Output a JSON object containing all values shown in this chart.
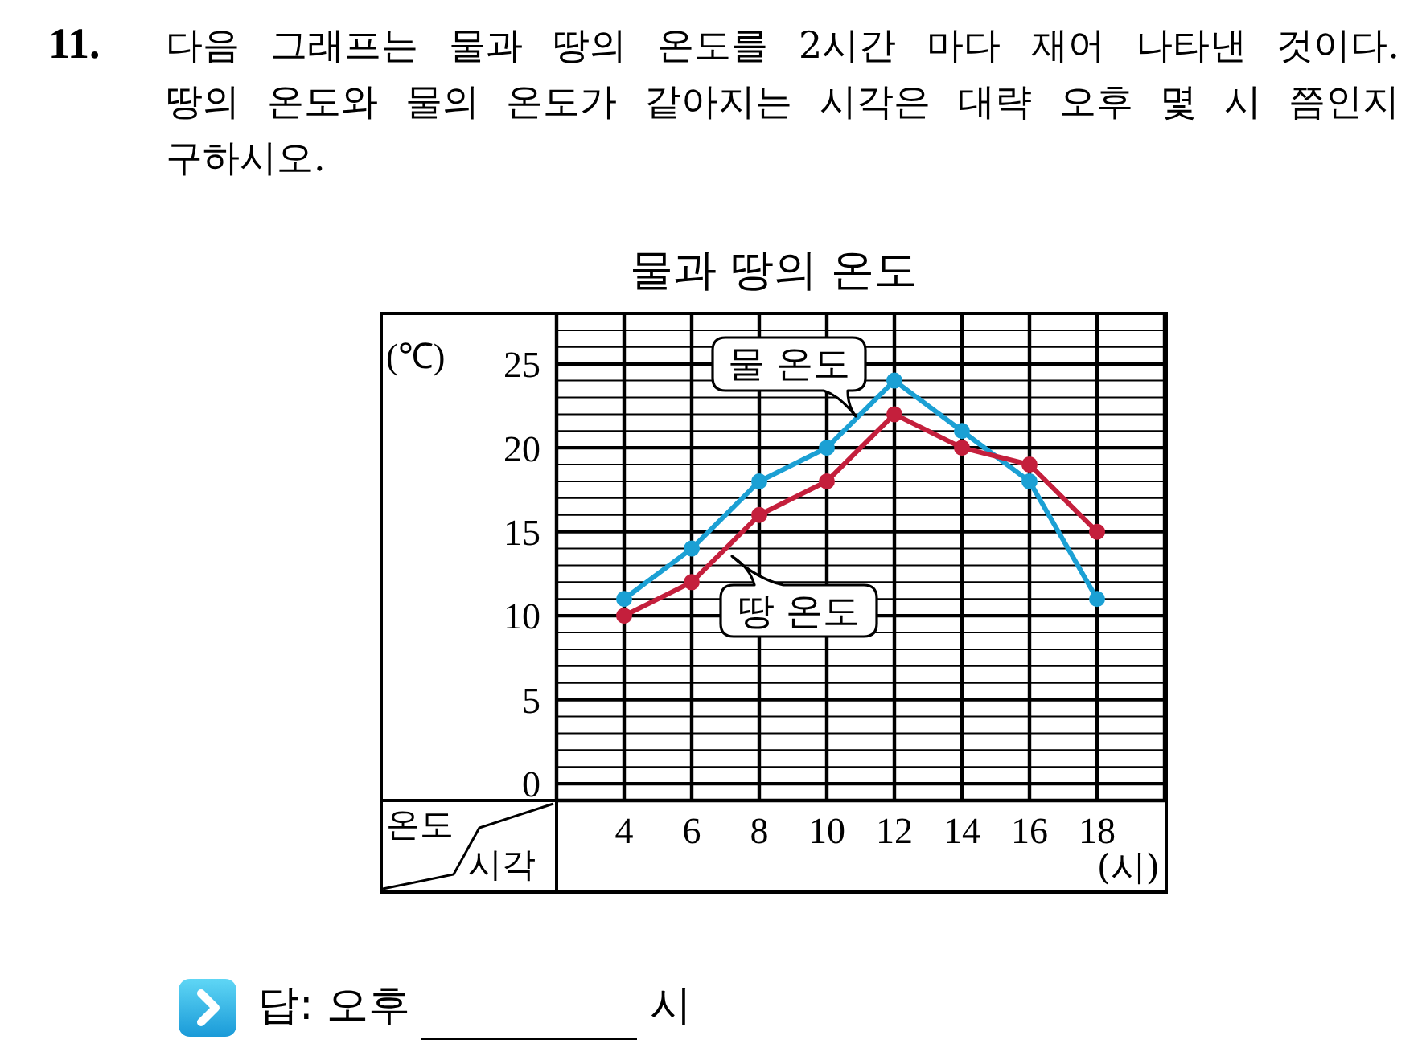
{
  "chart_data": {
    "type": "line",
    "title": "물과 땅의 온도",
    "xlabel": "(시)",
    "ylabel": "(℃)",
    "annotations": [
      "11.",
      "다음 그래프는 물과 땅의 온도를 2시간 마다 재어 나타낸 것이다.\n땅의 온도와 물의 온도가 같아지는 시각은 대략 오후 몇 시 쯤인지\n구하시오.",
      "온도",
      "시각",
      "답: 오후",
      "시"
    ],
    "x": [
      4,
      6,
      8,
      10,
      12,
      14,
      16,
      18
    ],
    "series": [
      {
        "name": "물 온도",
        "color": "#1ba0d4",
        "values": [
          11,
          14,
          18,
          20,
          24,
          21,
          18,
          11
        ]
      },
      {
        "name": "땅 온도",
        "color": "#c41f3c",
        "values": [
          10,
          12,
          16,
          18,
          22,
          20,
          19,
          15
        ]
      }
    ],
    "xlim": [
      2,
      20
    ],
    "xticks": [
      4,
      6,
      8,
      10,
      12,
      14,
      16,
      18
    ],
    "ylim": [
      -1,
      28
    ],
    "yticks": [
      0,
      {
        "value": 1,
        "label": null
      },
      {
        "value": 2,
        "label": null
      },
      {
        "value": 3,
        "label": null
      },
      {
        "value": 4,
        "label": null
      },
      5,
      {
        "value": 6,
        "label": null
      },
      {
        "value": 7,
        "label": null
      },
      {
        "value": 8,
        "label": null
      },
      {
        "value": 9,
        "label": null
      },
      10,
      {
        "value": 11,
        "label": null
      },
      {
        "value": 12,
        "label": null
      },
      {
        "value": 13,
        "label": null
      },
      {
        "value": 14,
        "label": null
      },
      15,
      {
        "value": 16,
        "label": null
      },
      {
        "value": 17,
        "label": null
      },
      {
        "value": 18,
        "label": null
      },
      {
        "value": 19,
        "label": null
      },
      20,
      {
        "value": 21,
        "label": null
      },
      {
        "value": 22,
        "label": null
      },
      {
        "value": 23,
        "label": null
      },
      {
        "value": 24,
        "label": null
      },
      25,
      {
        "value": 26,
        "label": null
      },
      {
        "value": 27,
        "label": null
      }
    ],
    "grid": true,
    "marker": "circle",
    "line_style": "solid"
  }
}
